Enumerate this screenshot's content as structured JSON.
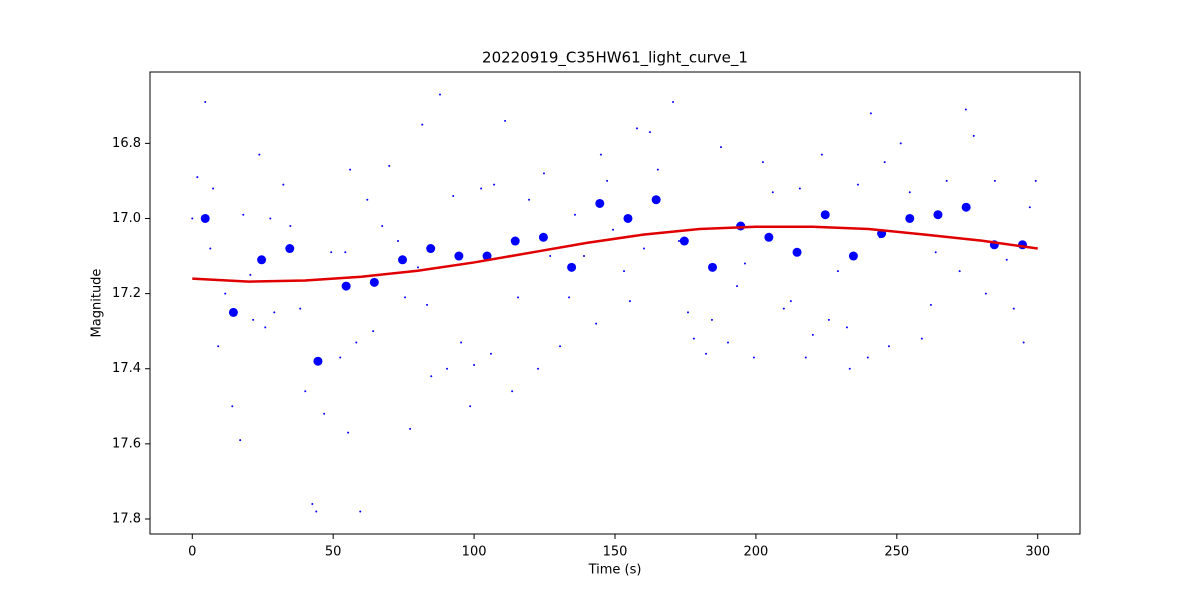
{
  "chart_data": {
    "type": "scatter",
    "title": "20220919_C35HW61_light_curve_1",
    "x_label": "Time (s)",
    "y_label": "Magnitude",
    "xlim": [
      -15,
      315
    ],
    "xticks": [
      0,
      50,
      100,
      150,
      200,
      250,
      300
    ],
    "ylim": [
      16.61,
      17.84
    ],
    "y_inverted": true,
    "yticks": [
      16.8,
      {
        "value": 17,
        "label": "17.0"
      },
      17.2,
      17.4,
      17.6,
      17.8
    ],
    "series": [
      {
        "kind": "points",
        "color": "#0000ff",
        "x": [
          0,
          1.8,
          4.6,
          6.4,
          7.4,
          9.2,
          11.7,
          14.2,
          17.0,
          18.1,
          20.6,
          21.6,
          23.8,
          25.9,
          27.7,
          29.1,
          32.3,
          34.8,
          38.3,
          40.1,
          42.6,
          44.0,
          46.8,
          49.3,
          52.5,
          54.3,
          55.3,
          56.0,
          58.2,
          59.6,
          62.1,
          64.2,
          67.4,
          69.9,
          73.0,
          75.5,
          77.3,
          80.1,
          81.6,
          83.3,
          84.8,
          87.9,
          90.4,
          92.6,
          95.4,
          98.6,
          100.0,
          102.5,
          106.0,
          107.1,
          111.0,
          113.5,
          115.6,
          119.5,
          122.7,
          124.8,
          127.0,
          130.5,
          133.7,
          135.8,
          139.0,
          143.3,
          145.0,
          147.2,
          149.3,
          153.2,
          155.3,
          157.8,
          160.3,
          162.4,
          165.2,
          170.6,
          172.7,
          175.9,
          178.0,
          182.3,
          184.4,
          187.6,
          190.1,
          193.3,
          196.1,
          199.3,
          202.5,
          206.0,
          209.9,
          212.4,
          215.6,
          217.7,
          220.2,
          223.4,
          225.9,
          229.1,
          232.3,
          233.3,
          236.2,
          239.7,
          240.8,
          244.0,
          245.7,
          247.2,
          251.4,
          254.6,
          258.9,
          262.1,
          263.8,
          267.7,
          272.3,
          274.5,
          277.3,
          281.6,
          284.8,
          289.0,
          291.5,
          295.0,
          297.2,
          299.3
        ],
        "values": [
          17.0,
          16.89,
          16.69,
          17.08,
          16.92,
          17.34,
          17.2,
          17.5,
          17.59,
          16.99,
          17.15,
          17.27,
          16.83,
          17.29,
          17.0,
          17.25,
          16.91,
          17.02,
          17.24,
          17.46,
          17.76,
          17.78,
          17.52,
          17.09,
          17.37,
          17.09,
          17.57,
          16.87,
          17.33,
          17.78,
          16.95,
          17.3,
          17.02,
          16.86,
          17.06,
          17.21,
          17.56,
          17.13,
          16.75,
          17.23,
          17.42,
          16.67,
          17.4,
          16.94,
          17.33,
          17.5,
          17.39,
          16.92,
          17.36,
          16.91,
          16.74,
          17.46,
          17.21,
          16.95,
          17.4,
          16.88,
          17.1,
          17.34,
          17.21,
          16.99,
          17.1,
          17.28,
          16.83,
          16.9,
          17.03,
          17.14,
          17.22,
          16.76,
          17.08,
          16.77,
          16.87,
          16.69,
          17.06,
          17.25,
          17.32,
          17.36,
          17.27,
          16.81,
          17.33,
          17.18,
          17.12,
          17.37,
          16.85,
          16.93,
          17.24,
          17.22,
          16.92,
          17.37,
          17.31,
          16.83,
          17.27,
          17.14,
          17.29,
          17.4,
          16.91,
          17.37,
          16.72,
          17.05,
          16.85,
          17.34,
          16.8,
          16.93,
          17.32,
          17.23,
          17.09,
          16.9,
          17.14,
          16.71,
          16.78,
          17.2,
          16.9,
          17.11,
          17.24,
          17.33,
          16.97,
          16.9
        ]
      },
      {
        "kind": "markers",
        "color": "#0000ff",
        "x": [
          4.6,
          14.6,
          24.6,
          34.6,
          44.6,
          54.6,
          64.6,
          74.6,
          84.6,
          94.6,
          104.6,
          114.6,
          124.6,
          134.6,
          144.6,
          154.6,
          164.6,
          174.6,
          184.6,
          194.6,
          204.6,
          214.6,
          224.6,
          234.6,
          244.6,
          254.6,
          264.6,
          274.6,
          284.6,
          294.6
        ],
        "values": [
          17.0,
          17.25,
          17.11,
          17.08,
          17.38,
          17.18,
          17.17,
          17.11,
          17.08,
          17.1,
          17.1,
          17.06,
          17.05,
          17.13,
          16.96,
          17.0,
          16.95,
          17.06,
          17.13,
          17.02,
          17.05,
          17.09,
          16.99,
          17.1,
          17.04,
          17.0,
          16.99,
          16.97,
          17.07,
          17.07
        ]
      },
      {
        "kind": "line",
        "color": "#e00000",
        "x": [
          0,
          20,
          40,
          60,
          80,
          100,
          120,
          140,
          160,
          180,
          200,
          220,
          240,
          260,
          280,
          300
        ],
        "values": [
          17.16,
          17.168,
          17.165,
          17.155,
          17.139,
          17.117,
          17.091,
          17.065,
          17.043,
          17.028,
          17.022,
          17.022,
          17.028,
          17.043,
          17.059,
          17.08
        ]
      }
    ]
  }
}
